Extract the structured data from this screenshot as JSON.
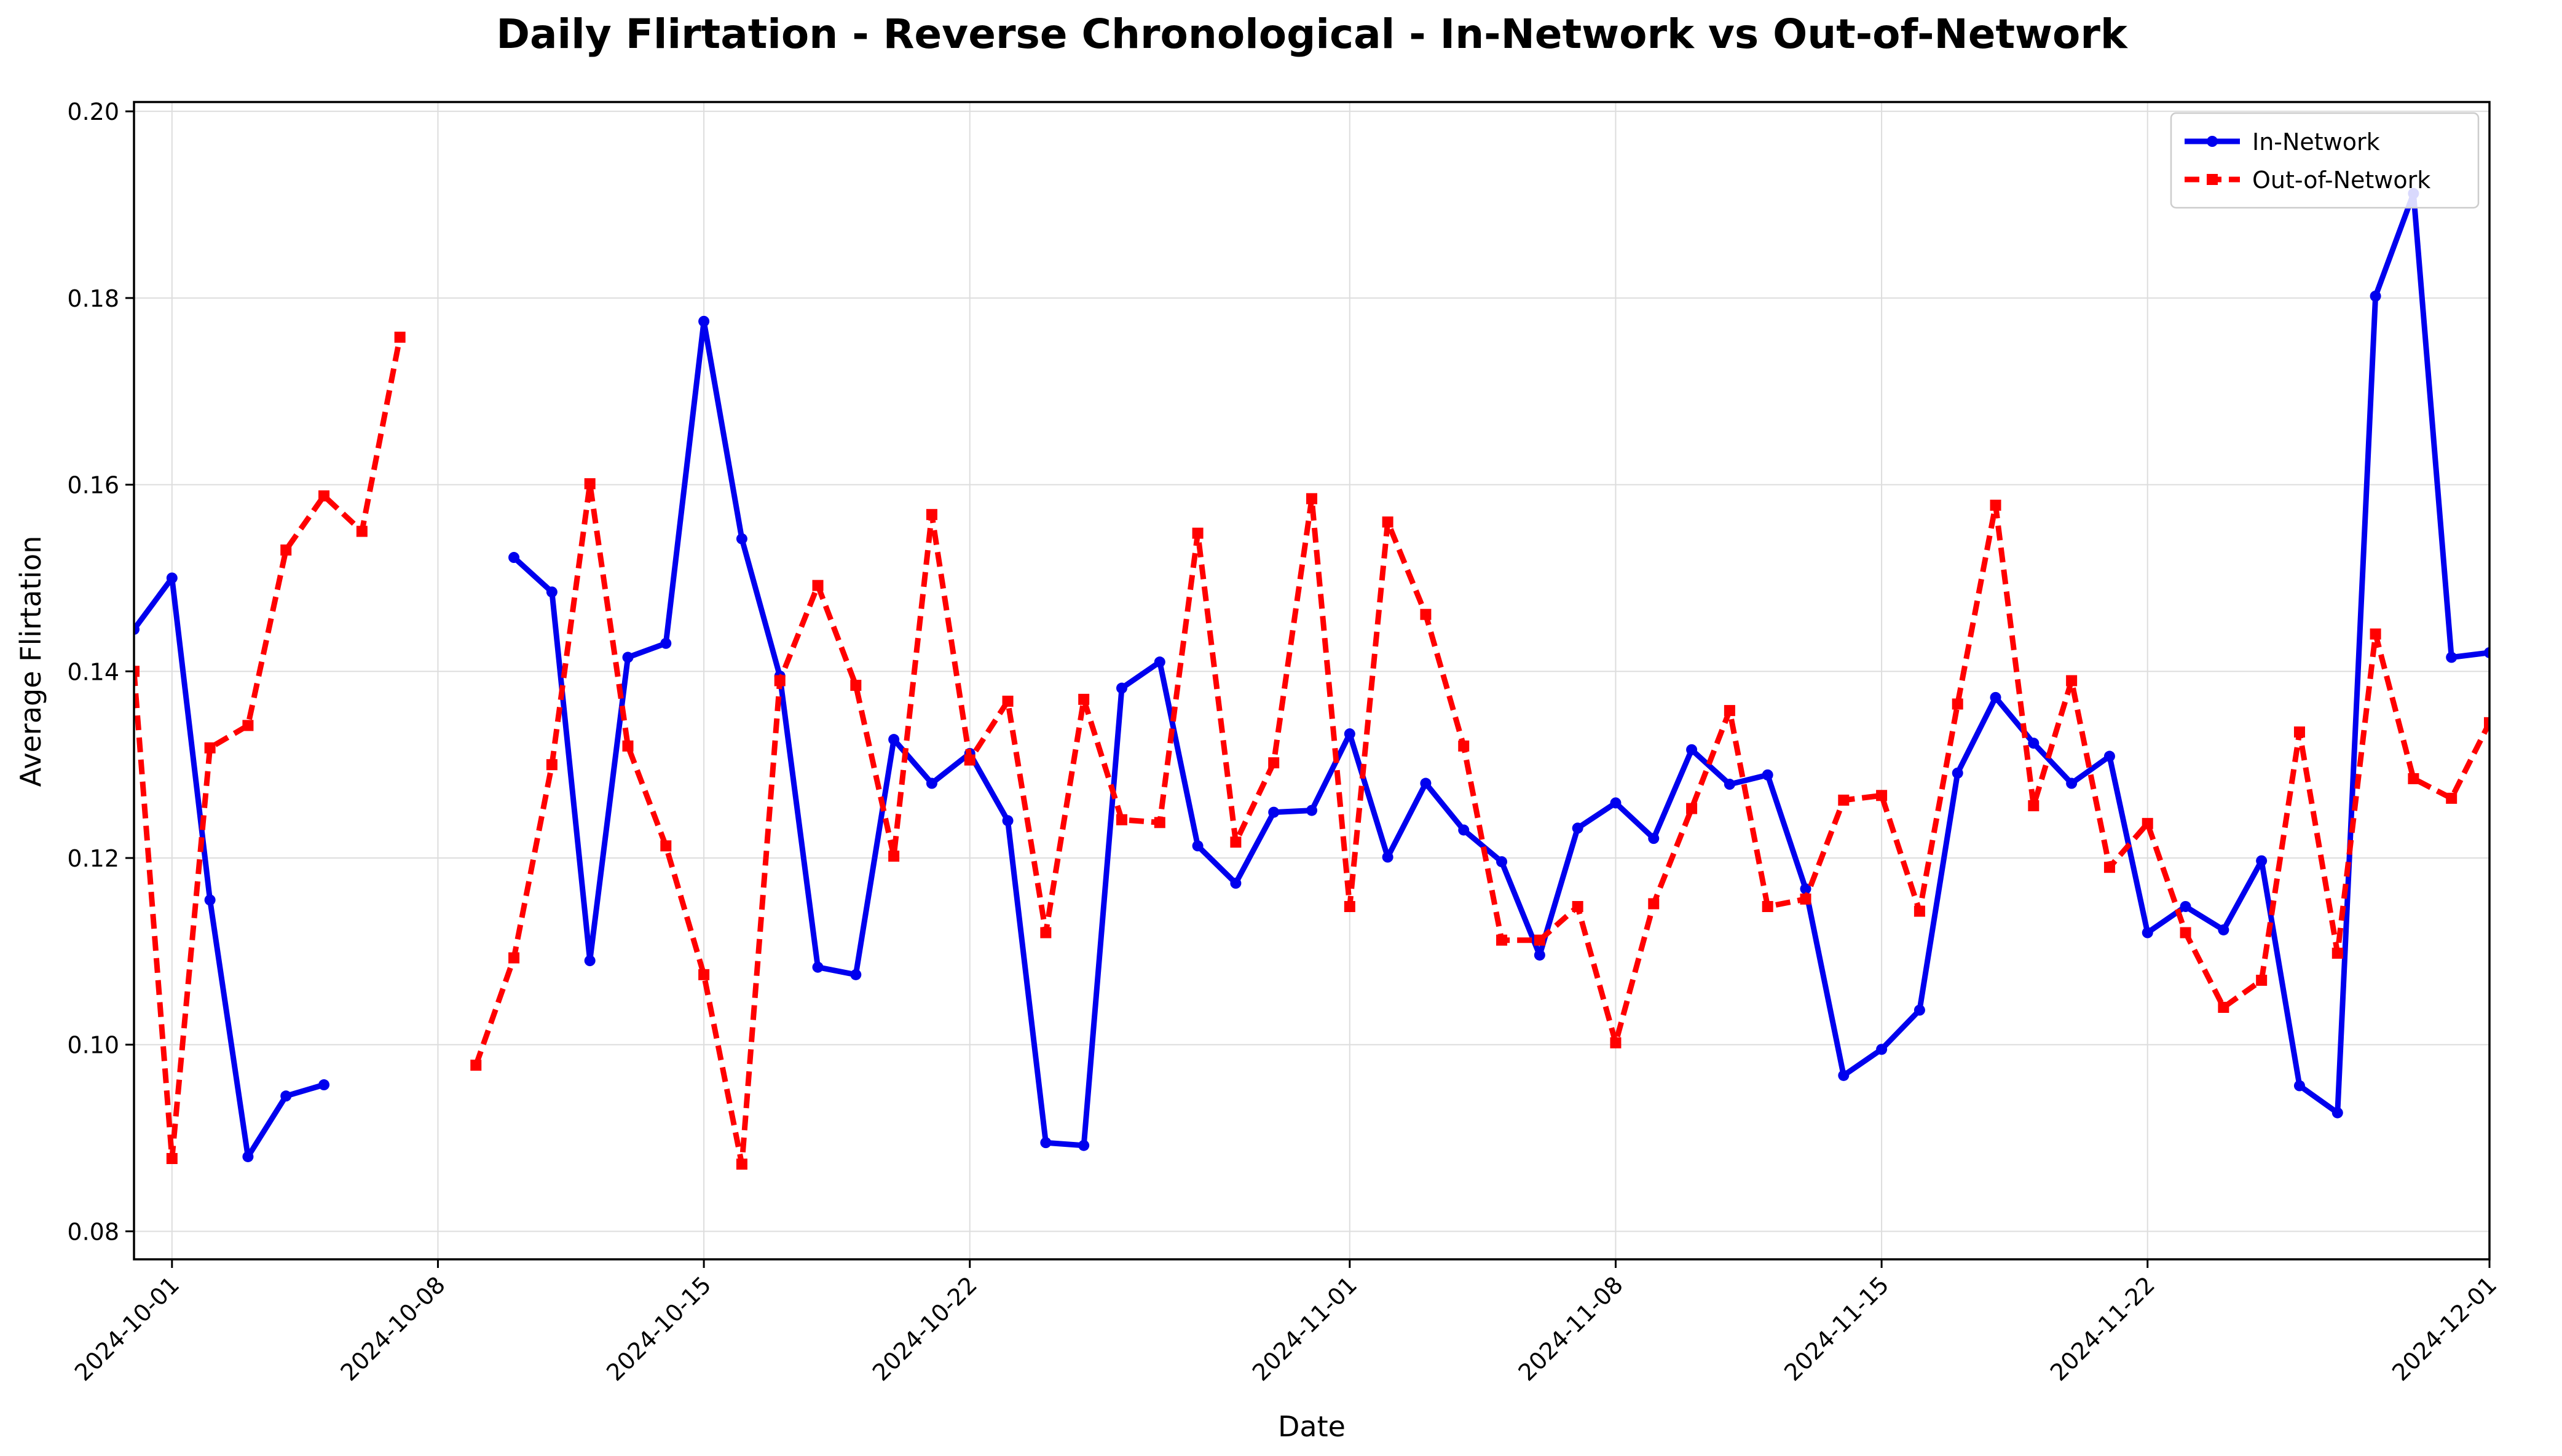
{
  "chart_data": {
    "type": "line",
    "title": "Daily Flirtation - Reverse Chronological - In-Network vs Out-of-Network",
    "xlabel": "Date",
    "ylabel": "Average Flirtation",
    "xlim": [
      "2024-09-30",
      "2024-12-01"
    ],
    "ylim": [
      0.077,
      0.201
    ],
    "x_ticks": [
      "2024-10-01",
      "2024-10-08",
      "2024-10-15",
      "2024-10-22",
      "2024-11-01",
      "2024-11-08",
      "2024-11-15",
      "2024-11-22",
      "2024-12-01"
    ],
    "y_ticks": [
      "0.08",
      "0.10",
      "0.12",
      "0.14",
      "0.16",
      "0.18",
      "0.20"
    ],
    "grid": true,
    "legend_position": "top-right",
    "series": [
      {
        "name": "In-Network",
        "color": "#0000ee",
        "style": "solid",
        "marker": "circle",
        "points": [
          [
            "2024-09-30",
            0.1445
          ],
          [
            "2024-10-01",
            0.15
          ],
          [
            "2024-10-02",
            0.1155
          ],
          [
            "2024-10-03",
            0.088
          ],
          [
            "2024-10-04",
            0.0945
          ],
          [
            "2024-10-05",
            0.0957
          ],
          [
            "2024-10-06",
            null
          ],
          [
            "2024-10-07",
            null
          ],
          [
            "2024-10-08",
            null
          ],
          [
            "2024-10-09",
            null
          ],
          [
            "2024-10-10",
            0.1522
          ],
          [
            "2024-10-11",
            0.1485
          ],
          [
            "2024-10-12",
            0.109
          ],
          [
            "2024-10-13",
            0.1415
          ],
          [
            "2024-10-14",
            0.143
          ],
          [
            "2024-10-15",
            0.1775
          ],
          [
            "2024-10-16",
            0.1542
          ],
          [
            "2024-10-17",
            0.1395
          ],
          [
            "2024-10-18",
            0.1083
          ],
          [
            "2024-10-19",
            0.1075
          ],
          [
            "2024-10-20",
            0.1327
          ],
          [
            "2024-10-21",
            0.128
          ],
          [
            "2024-10-22",
            0.1312
          ],
          [
            "2024-10-23",
            0.124
          ],
          [
            "2024-10-24",
            0.0895
          ],
          [
            "2024-10-25",
            0.0892
          ],
          [
            "2024-10-26",
            0.1382
          ],
          [
            "2024-10-27",
            0.141
          ],
          [
            "2024-10-28",
            0.1213
          ],
          [
            "2024-10-29",
            0.1173
          ],
          [
            "2024-10-30",
            0.1249
          ],
          [
            "2024-10-31",
            0.1251
          ],
          [
            "2024-11-01",
            0.1333
          ],
          [
            "2024-11-02",
            0.1201
          ],
          [
            "2024-11-03",
            0.128
          ],
          [
            "2024-11-04",
            0.123
          ],
          [
            "2024-11-05",
            0.1196
          ],
          [
            "2024-11-06",
            0.1096
          ],
          [
            "2024-11-07",
            0.1232
          ],
          [
            "2024-11-08",
            0.1259
          ],
          [
            "2024-11-09",
            0.1221
          ],
          [
            "2024-11-10",
            0.1316
          ],
          [
            "2024-11-11",
            0.1279
          ],
          [
            "2024-11-12",
            0.1289
          ],
          [
            "2024-11-13",
            0.1167
          ],
          [
            "2024-11-14",
            0.0967
          ],
          [
            "2024-11-15",
            0.0995
          ],
          [
            "2024-11-16",
            0.1037
          ],
          [
            "2024-11-17",
            0.1291
          ],
          [
            "2024-11-18",
            0.1372
          ],
          [
            "2024-11-19",
            0.1323
          ],
          [
            "2024-11-20",
            0.128
          ],
          [
            "2024-11-21",
            0.1309
          ],
          [
            "2024-11-22",
            0.112
          ],
          [
            "2024-11-23",
            0.1148
          ],
          [
            "2024-11-24",
            0.1123
          ],
          [
            "2024-11-25",
            0.1197
          ],
          [
            "2024-11-26",
            0.0956
          ],
          [
            "2024-11-27",
            0.0927
          ],
          [
            "2024-11-28",
            0.1802
          ],
          [
            "2024-11-29",
            0.1912
          ],
          [
            "2024-11-30",
            0.1415
          ],
          [
            "2024-12-01",
            0.142
          ]
        ]
      },
      {
        "name": "Out-of-Network",
        "color": "#ff0000",
        "style": "dashed",
        "marker": "square",
        "points": [
          [
            "2024-09-30",
            0.14
          ],
          [
            "2024-10-01",
            0.0878
          ],
          [
            "2024-10-02",
            0.1318
          ],
          [
            "2024-10-03",
            0.1342
          ],
          [
            "2024-10-04",
            0.153
          ],
          [
            "2024-10-05",
            0.1588
          ],
          [
            "2024-10-06",
            0.155
          ],
          [
            "2024-10-07",
            0.1758
          ],
          [
            "2024-10-08",
            null
          ],
          [
            "2024-10-09",
            0.0978
          ],
          [
            "2024-10-10",
            0.1093
          ],
          [
            "2024-10-11",
            0.13
          ],
          [
            "2024-10-12",
            0.1601
          ],
          [
            "2024-10-13",
            0.132
          ],
          [
            "2024-10-14",
            0.1213
          ],
          [
            "2024-10-15",
            0.1075
          ],
          [
            "2024-10-16",
            0.0872
          ],
          [
            "2024-10-17",
            0.139
          ],
          [
            "2024-10-18",
            0.1492
          ],
          [
            "2024-10-19",
            0.1385
          ],
          [
            "2024-10-20",
            0.1202
          ],
          [
            "2024-10-21",
            0.1568
          ],
          [
            "2024-10-22",
            0.1305
          ],
          [
            "2024-10-23",
            0.1368
          ],
          [
            "2024-10-24",
            0.112
          ],
          [
            "2024-10-25",
            0.137
          ],
          [
            "2024-10-26",
            0.1241
          ],
          [
            "2024-10-27",
            0.1238
          ],
          [
            "2024-10-28",
            0.1548
          ],
          [
            "2024-10-29",
            0.1217
          ],
          [
            "2024-10-30",
            0.1302
          ],
          [
            "2024-10-31",
            0.1585
          ],
          [
            "2024-11-01",
            0.1148
          ],
          [
            "2024-11-02",
            0.156
          ],
          [
            "2024-11-03",
            0.1461
          ],
          [
            "2024-11-04",
            0.132
          ],
          [
            "2024-11-05",
            0.1112
          ],
          [
            "2024-11-06",
            0.1112
          ],
          [
            "2024-11-07",
            0.1148
          ],
          [
            "2024-11-08",
            0.1002
          ],
          [
            "2024-11-09",
            0.1151
          ],
          [
            "2024-11-10",
            0.1253
          ],
          [
            "2024-11-11",
            0.1358
          ],
          [
            "2024-11-12",
            0.1148
          ],
          [
            "2024-11-13",
            0.1156
          ],
          [
            "2024-11-14",
            0.1262
          ],
          [
            "2024-11-15",
            0.1267
          ],
          [
            "2024-11-16",
            0.1143
          ],
          [
            "2024-11-17",
            0.1365
          ],
          [
            "2024-11-18",
            0.1578
          ],
          [
            "2024-11-19",
            0.1256
          ],
          [
            "2024-11-20",
            0.139
          ],
          [
            "2024-11-21",
            0.119
          ],
          [
            "2024-11-22",
            0.1237
          ],
          [
            "2024-11-23",
            0.112
          ],
          [
            "2024-11-24",
            0.104
          ],
          [
            "2024-11-25",
            0.1069
          ],
          [
            "2024-11-26",
            0.1335
          ],
          [
            "2024-11-27",
            0.1098
          ],
          [
            "2024-11-28",
            0.144
          ],
          [
            "2024-11-29",
            0.1285
          ],
          [
            "2024-11-30",
            0.1264
          ],
          [
            "2024-12-01",
            0.1345
          ]
        ]
      }
    ]
  }
}
